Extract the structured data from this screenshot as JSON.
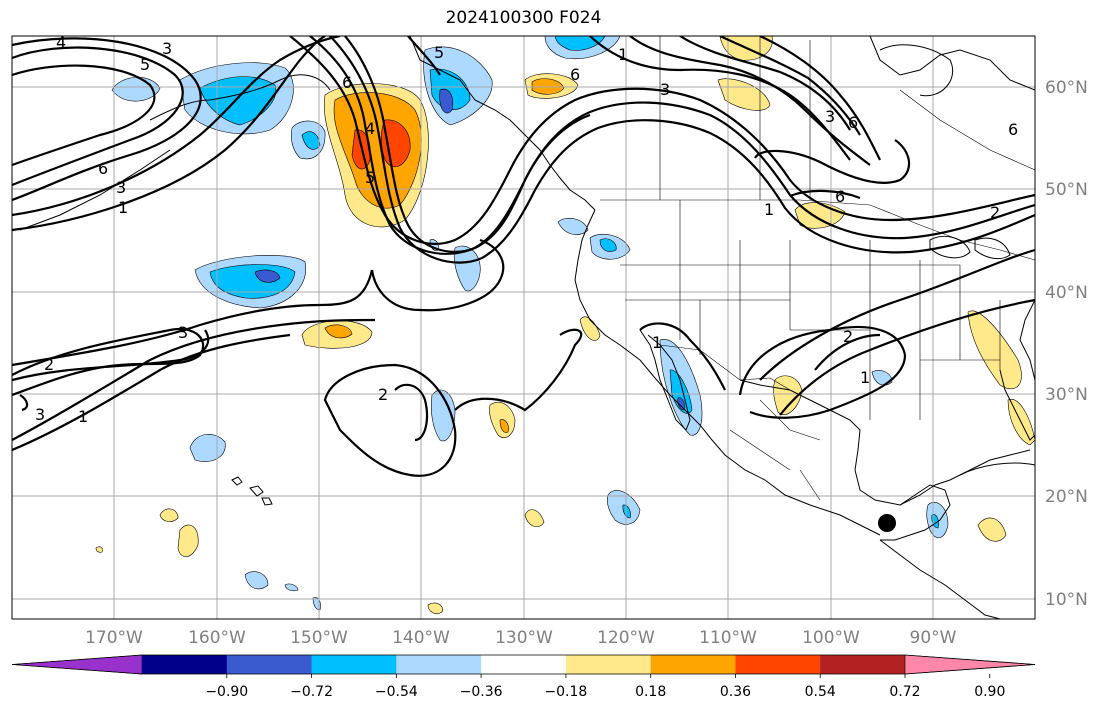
{
  "title": "2024100300 F024",
  "lat_labels": [
    "60°N",
    "50°N",
    "40°N",
    "30°N",
    "20°N",
    "10°N"
  ],
  "lon_labels": [
    "170°W",
    "160°W",
    "150°W",
    "140°W",
    "130°W",
    "120°W",
    "110°W",
    "100°W",
    "90°W"
  ],
  "colorbar": {
    "labels": [
      "−0.90",
      "−0.72",
      "−0.54",
      "−0.36",
      "−0.18",
      "0.18",
      "0.36",
      "0.54",
      "0.72",
      "0.90"
    ],
    "colors": [
      "#9932cc",
      "#00008b",
      "#3a5bd0",
      "#00bfff",
      "#add8ff",
      "#ffffff",
      "#ffe98a",
      "#ffa500",
      "#ff4500",
      "#b22222",
      "#ff88aa"
    ]
  },
  "contour_labels": [
    "4",
    "3",
    "5",
    "6",
    "3",
    "1",
    "6",
    "4",
    "5",
    "6",
    "5",
    "3",
    "6",
    "3",
    "1",
    "2",
    "6",
    "1",
    "3",
    "2",
    "3",
    "1",
    "2",
    "1",
    "2",
    "1",
    "6"
  ],
  "colors": {
    "grid": "#a9a9a9",
    "coast": "#000000",
    "contour": "#000000",
    "marker": "#000000"
  }
}
